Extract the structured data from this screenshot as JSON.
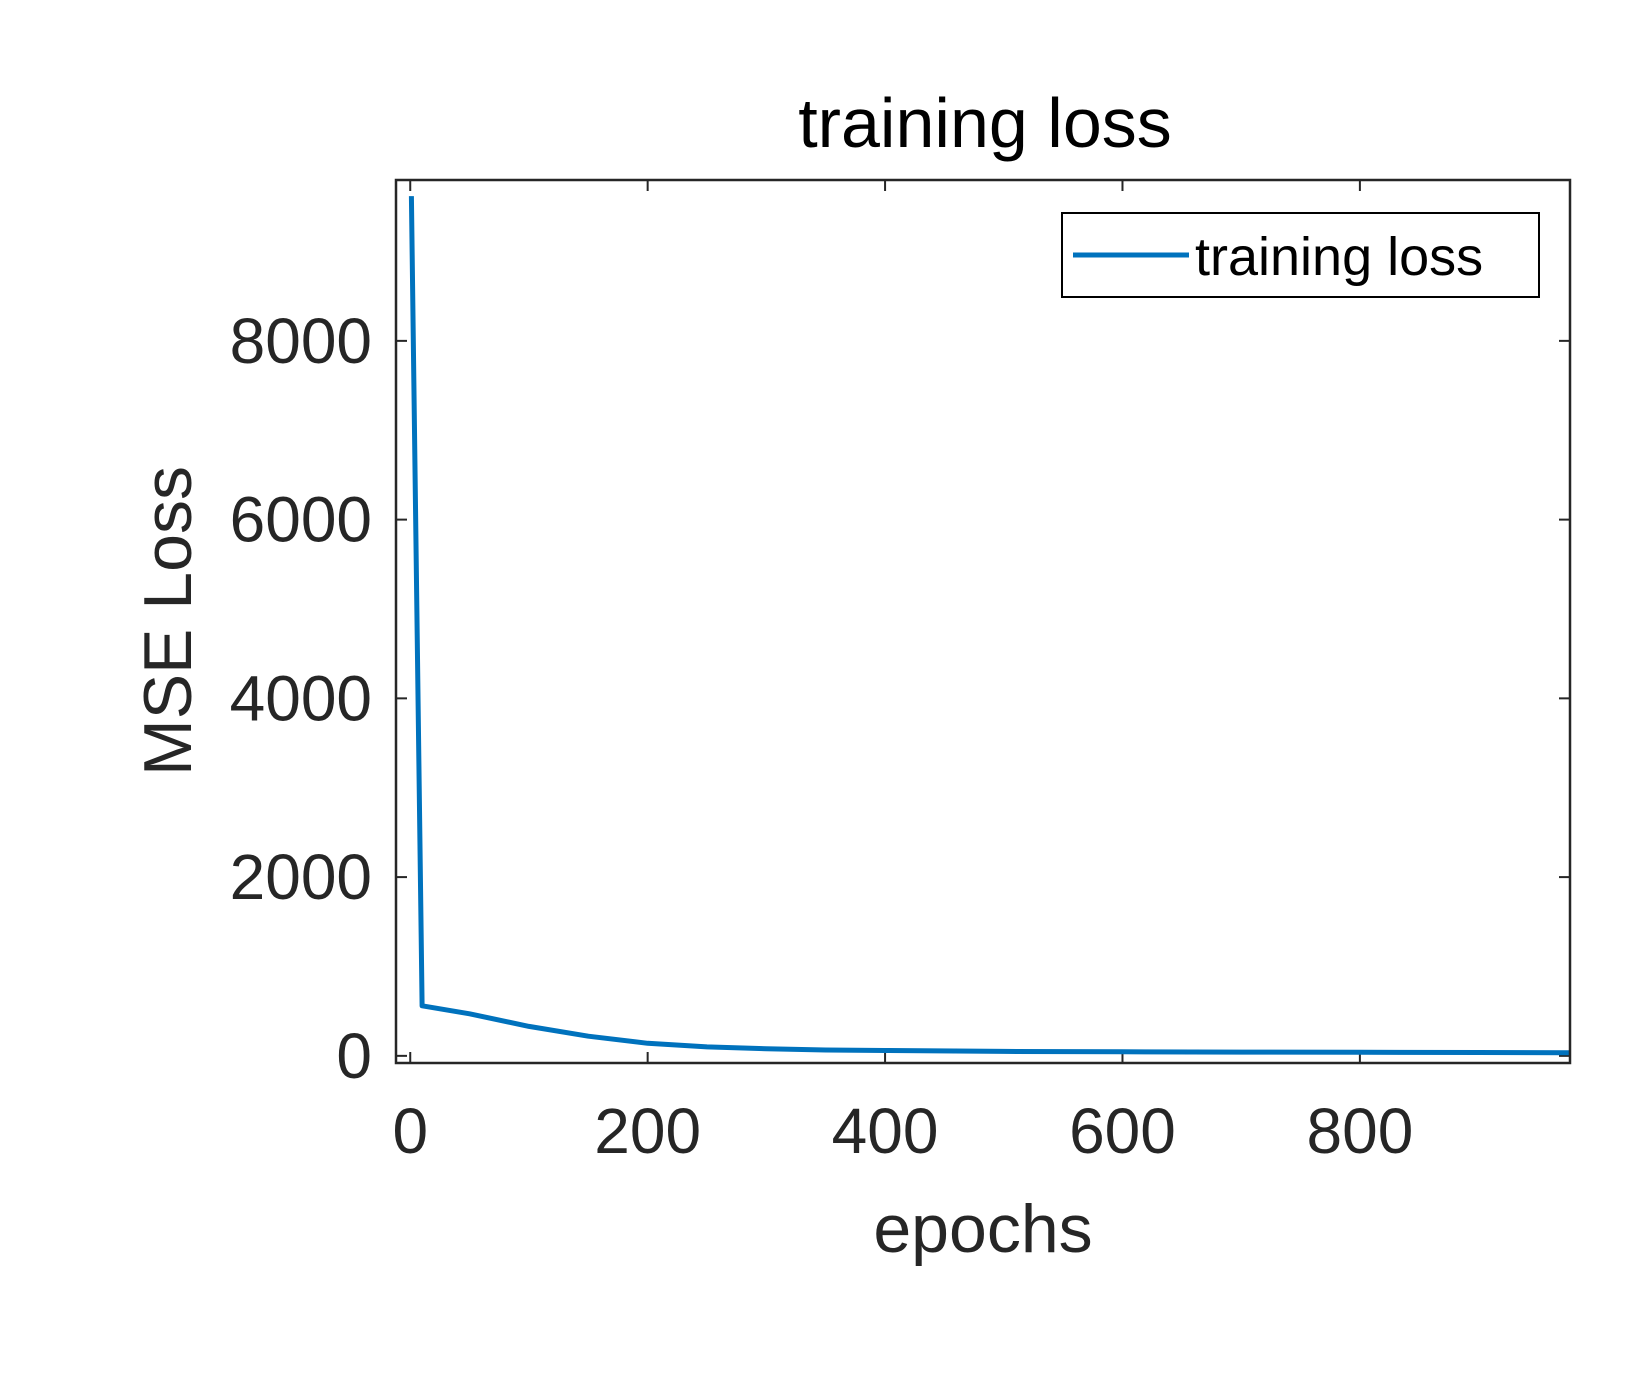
{
  "chart_data": {
    "type": "line",
    "title": "training loss",
    "xlabel": "epochs",
    "ylabel": "MSE Loss",
    "xlim": [
      -12,
      977
    ],
    "ylim": [
      -80,
      9800
    ],
    "xticks": [
      0,
      200,
      400,
      600,
      800
    ],
    "yticks": [
      0,
      2000,
      4000,
      6000,
      8000
    ],
    "grid": false,
    "legend": {
      "location": "top-right",
      "entries": [
        "training loss"
      ]
    },
    "series": [
      {
        "name": "training loss",
        "color": "#0072BD",
        "x": [
          1,
          10,
          50,
          100,
          150,
          200,
          250,
          300,
          350,
          400,
          500,
          600,
          700,
          800,
          900,
          977
        ],
        "y": [
          9620,
          560,
          470,
          330,
          220,
          140,
          100,
          80,
          65,
          60,
          50,
          45,
          42,
          40,
          38,
          35
        ]
      }
    ]
  }
}
